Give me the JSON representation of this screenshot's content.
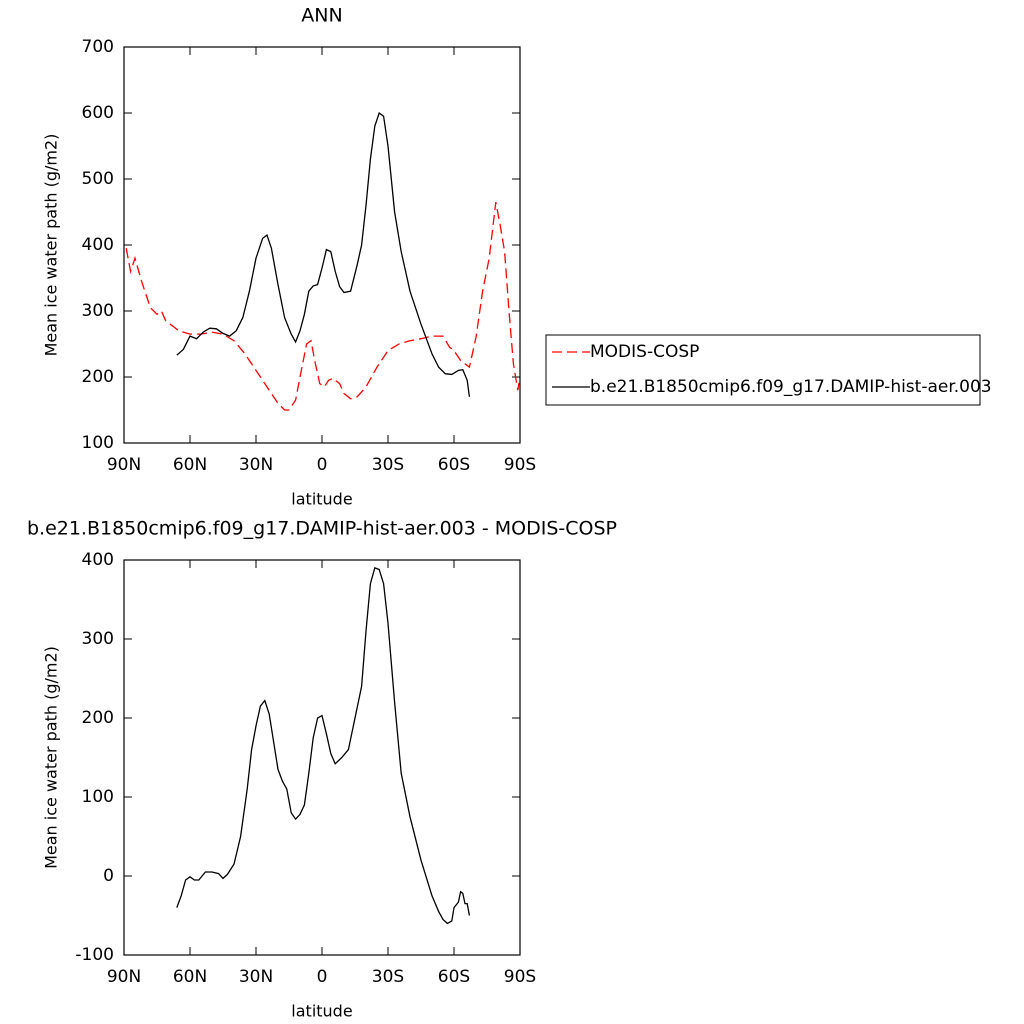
{
  "chart_data": [
    {
      "type": "line",
      "title": "ANN",
      "xlabel": "latitude",
      "ylabel": "Mean ice water path (g/m2)",
      "xlim": [
        90,
        -90
      ],
      "xticks": [
        {
          "value": 90,
          "label": "90N"
        },
        {
          "value": 60,
          "label": "60N"
        },
        {
          "value": 30,
          "label": "30N"
        },
        0,
        {
          "value": -30,
          "label": "30S"
        },
        {
          "value": -60,
          "label": "60S"
        },
        {
          "value": -90,
          "label": "90S"
        }
      ],
      "ylim": [
        100,
        700
      ],
      "yticks": [
        100,
        200,
        300,
        400,
        500,
        600,
        700
      ],
      "legend": "right",
      "series": [
        {
          "name": "MODIS-COSP",
          "color": "#ff0000",
          "dash": "dashed",
          "x": [
            89,
            87,
            85,
            82,
            80,
            78,
            75,
            73,
            71,
            69,
            67,
            65,
            60,
            55,
            50,
            45,
            40,
            35,
            30,
            25,
            20,
            17,
            15,
            12,
            10,
            7,
            5,
            3,
            1,
            -1,
            -3,
            -5,
            -8,
            -10,
            -13,
            -16,
            -20,
            -25,
            -30,
            -35,
            -40,
            -45,
            -50,
            -55,
            -58,
            -60,
            -63,
            -65,
            -67,
            -70,
            -73,
            -76,
            -79,
            -81,
            -83,
            -85,
            -87,
            -89,
            -90
          ],
          "values": [
            395,
            360,
            380,
            345,
            325,
            305,
            295,
            300,
            285,
            280,
            275,
            270,
            265,
            265,
            268,
            265,
            255,
            235,
            210,
            185,
            160,
            150,
            150,
            165,
            200,
            250,
            255,
            220,
            190,
            185,
            195,
            198,
            190,
            175,
            167,
            170,
            185,
            215,
            240,
            250,
            255,
            258,
            262,
            262,
            245,
            240,
            225,
            220,
            215,
            260,
            330,
            380,
            465,
            430,
            390,
            300,
            220,
            180,
            200
          ]
        },
        {
          "name": "b.e21.B1850cmip6.f09_g17.DAMIP-hist-aer.003",
          "color": "#000000",
          "dash": "solid",
          "x": [
            66,
            63,
            60,
            57,
            54,
            51,
            48,
            45,
            42,
            39,
            36,
            33,
            30,
            27,
            25,
            23,
            20,
            17,
            14,
            12,
            10,
            8,
            6,
            4,
            2,
            0,
            -2,
            -4,
            -6,
            -8,
            -10,
            -13,
            -16,
            -18,
            -20,
            -22,
            -24,
            -26,
            -28,
            -30,
            -33,
            -36,
            -40,
            -45,
            -50,
            -53,
            -56,
            -59,
            -62,
            -64,
            -66,
            -67
          ],
          "values": [
            233,
            242,
            262,
            258,
            268,
            274,
            273,
            266,
            262,
            270,
            290,
            330,
            380,
            410,
            415,
            395,
            340,
            290,
            265,
            253,
            270,
            295,
            330,
            338,
            340,
            365,
            393,
            390,
            360,
            337,
            328,
            330,
            370,
            400,
            460,
            530,
            580,
            600,
            595,
            550,
            450,
            390,
            330,
            280,
            235,
            215,
            205,
            204,
            210,
            211,
            195,
            170
          ]
        }
      ]
    },
    {
      "type": "line",
      "title": "b.e21.B1850cmip6.f09_g17.DAMIP-hist-aer.003 - MODIS-COSP",
      "xlabel": "latitude",
      "ylabel": "Mean ice water path (g/m2)",
      "xlim": [
        90,
        -90
      ],
      "xticks": [
        {
          "value": 90,
          "label": "90N"
        },
        {
          "value": 60,
          "label": "60N"
        },
        {
          "value": 30,
          "label": "30N"
        },
        0,
        {
          "value": -30,
          "label": "30S"
        },
        {
          "value": -60,
          "label": "60S"
        },
        {
          "value": -90,
          "label": "90S"
        }
      ],
      "ylim": [
        -100,
        400
      ],
      "yticks": [
        -100,
        0,
        100,
        200,
        300,
        400
      ],
      "series": [
        {
          "color": "#000000",
          "dash": "solid",
          "x": [
            66,
            64,
            62,
            60,
            58,
            56,
            53,
            50,
            47,
            45,
            43,
            40,
            37,
            34,
            32,
            30,
            28,
            26,
            24,
            22,
            20,
            18,
            16,
            14,
            12,
            10,
            8,
            6,
            4,
            2,
            0,
            -2,
            -4,
            -6,
            -9,
            -12,
            -15,
            -18,
            -20,
            -22,
            -24,
            -26,
            -28,
            -30,
            -33,
            -36,
            -40,
            -45,
            -50,
            -53,
            -55,
            -57,
            -59,
            -60,
            -62,
            -63,
            -64,
            -65,
            -66,
            -67
          ],
          "values": [
            -40,
            -25,
            -5,
            -1,
            -5,
            -5,
            5,
            5,
            3,
            -3,
            2,
            15,
            50,
            110,
            160,
            190,
            215,
            222,
            205,
            170,
            135,
            120,
            110,
            80,
            72,
            78,
            90,
            130,
            175,
            200,
            203,
            180,
            155,
            142,
            150,
            160,
            200,
            240,
            310,
            370,
            390,
            388,
            370,
            320,
            220,
            130,
            75,
            20,
            -25,
            -45,
            -55,
            -60,
            -57,
            -40,
            -33,
            -20,
            -22,
            -35,
            -35,
            -50
          ]
        }
      ]
    }
  ]
}
